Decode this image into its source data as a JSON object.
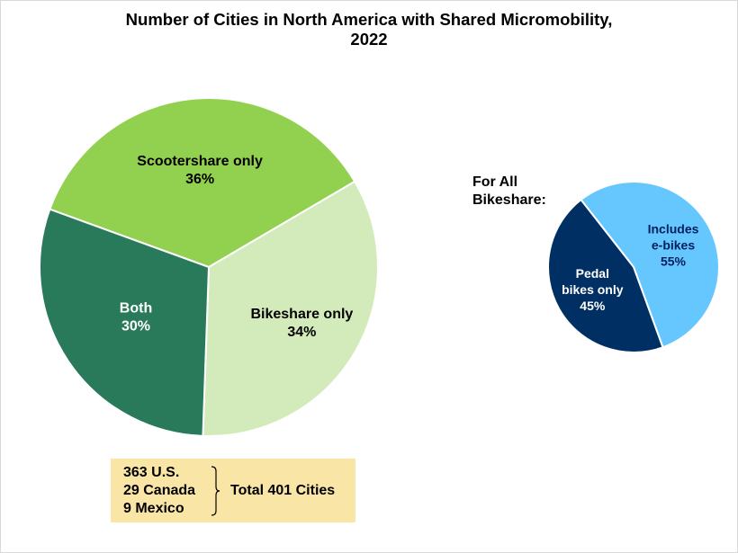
{
  "chart_data": [
    {
      "type": "pie",
      "title_lines": [
        "Number of Cities in North America with Shared Micromobility,",
        "2022"
      ],
      "slices": [
        {
          "label": "Scootershare only",
          "value_label": "36%",
          "value": 36,
          "color": "#92d050",
          "text_color": "#000000"
        },
        {
          "label": "Bikeshare only",
          "value_label": "34%",
          "value": 34,
          "color": "#d3ebbb",
          "text_color": "#000000"
        },
        {
          "label": "Both",
          "value_label": "30%",
          "value": 30,
          "color": "#287a5a",
          "text_color": "#ffffff"
        }
      ]
    },
    {
      "type": "pie",
      "title_lines": [
        "For All",
        "Bikeshare:"
      ],
      "slices": [
        {
          "label_lines": [
            "Includes",
            "e-bikes"
          ],
          "value_label": "55%",
          "value": 55,
          "color": "#66c7ff",
          "text_color": "#002060"
        },
        {
          "label_lines": [
            "Pedal",
            "bikes only"
          ],
          "value_label": "45%",
          "value": 45,
          "color": "#002f63",
          "text_color": "#ffffff"
        }
      ]
    }
  ],
  "totals": {
    "countries": [
      "363 U.S.",
      "29 Canada",
      "9 Mexico"
    ],
    "total_label": "Total 401 Cities",
    "box_color": "#f9e5a6"
  }
}
